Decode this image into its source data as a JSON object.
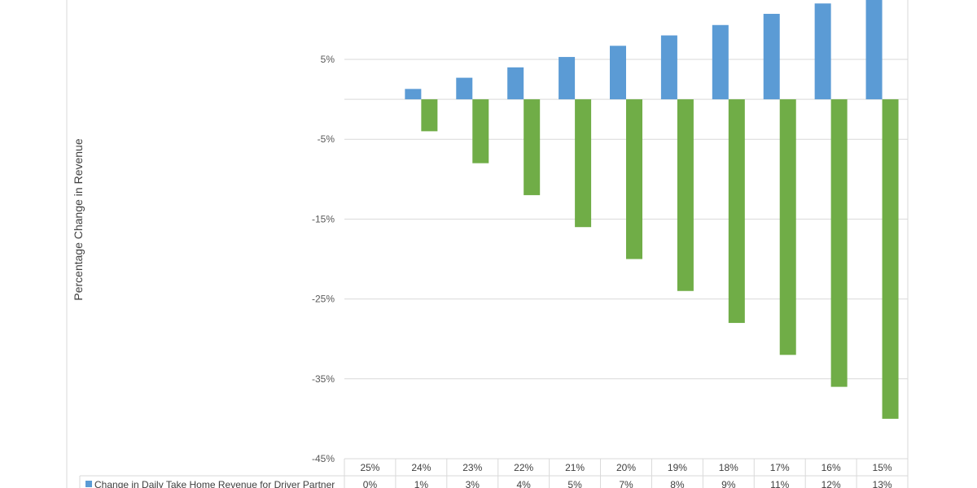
{
  "chart_data": {
    "type": "bar",
    "title": "",
    "xlabel": "",
    "ylabel": "Percentage Change in Revenue",
    "ylim": [
      -45,
      15
    ],
    "y_ticks": [
      "5%",
      "-5%",
      "-15%",
      "-25%",
      "-35%",
      "-45%"
    ],
    "y_tick_values": [
      5,
      -5,
      -15,
      -25,
      -35,
      -45
    ],
    "categories": [
      "25%",
      "24%",
      "23%",
      "22%",
      "21%",
      "20%",
      "19%",
      "18%",
      "17%",
      "16%",
      "15%"
    ],
    "series": [
      {
        "name": "Change in Daily Take Home Revenue for Driver Partner",
        "color": "#5B9BD5",
        "values": [
          0,
          1.3,
          2.7,
          4.0,
          5.3,
          6.7,
          8.0,
          9.3,
          10.7,
          12.0,
          13.3
        ],
        "table_labels": [
          "0%",
          "1%",
          "3%",
          "4%",
          "5%",
          "7%",
          "8%",
          "9%",
          "11%",
          "12%",
          "13%"
        ]
      },
      {
        "color": "#70AD47",
        "values": [
          0,
          -4,
          -8,
          -12,
          -16,
          -20,
          -24,
          -28,
          -32,
          -36,
          -40
        ]
      }
    ],
    "gridlines": true,
    "legend": "data-table"
  }
}
